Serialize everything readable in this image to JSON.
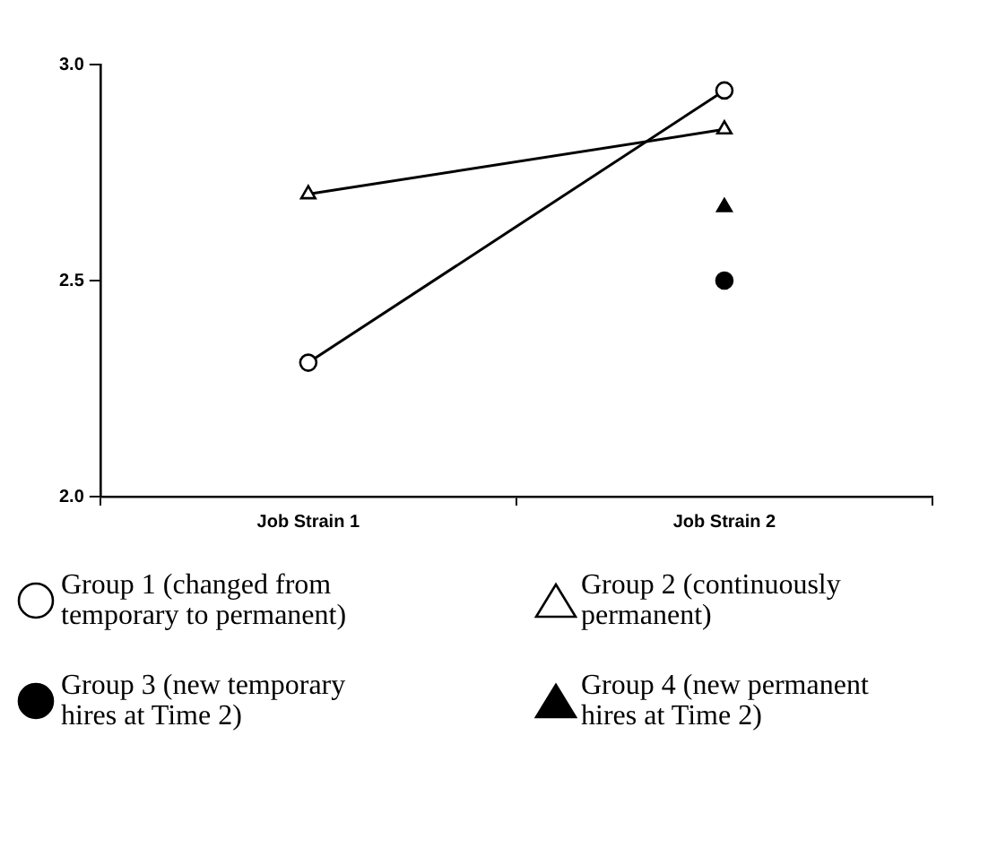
{
  "chart_data": {
    "type": "line",
    "categories": [
      "Job Strain 1",
      "Job Strain 2"
    ],
    "ylim": [
      2.0,
      3.0
    ],
    "yticks": [
      {
        "value": 2.0,
        "label": "2.0"
      },
      {
        "value": 2.5,
        "label": "2.5"
      },
      {
        "value": 3.0,
        "label": "3.0"
      }
    ],
    "grid": false,
    "legend": "bottom",
    "series": [
      {
        "name": "Group 1 (changed from temporary to permanent)",
        "type": "line",
        "marker": "circle",
        "color": "#000000",
        "values": [
          2.31,
          2.94
        ]
      },
      {
        "name": "Group 2 (continuously permanent)",
        "type": "line",
        "marker": "triangle",
        "color": "#000000",
        "values": [
          2.7,
          2.85
        ]
      },
      {
        "name": "Group 3 (new temporary hires at Time 2)",
        "type": "scatter",
        "marker": "circle",
        "color": "#000000",
        "values": [
          null,
          2.5
        ]
      },
      {
        "name": "Group 4 (new permanent hires at Time 2)",
        "type": "scatter",
        "marker": "triangle",
        "color": "#000000",
        "values": [
          null,
          2.67
        ]
      }
    ]
  }
}
